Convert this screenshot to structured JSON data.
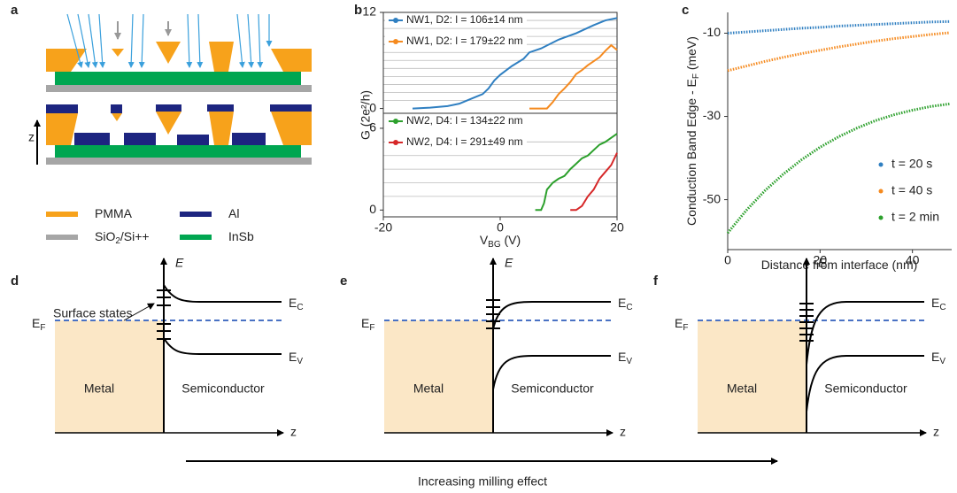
{
  "panel_a": {
    "label": "a",
    "z_label": "z",
    "legend": [
      {
        "label": {
          "main": "PMMA"
        },
        "color": "#f7a21b"
      },
      {
        "label": {
          "main": "Al"
        },
        "color": "#1d2580"
      },
      {
        "label": {
          "main": "SiO",
          "sub": "2",
          "rest": "/Si++"
        },
        "color": "#a6a6a6"
      },
      {
        "label": {
          "main": "InSb"
        },
        "color": "#00a651"
      }
    ]
  },
  "panel_b_label": "b",
  "panel_c_label": "c",
  "chart_data": [
    {
      "type": "line",
      "y_label": "G (2e²/h)",
      "xlim": [
        -20,
        20
      ],
      "ylim": [
        -0.6,
        12
      ],
      "yticks": [
        0,
        12
      ],
      "ygrid": [
        1,
        2,
        3,
        4,
        5,
        6,
        7,
        8,
        9,
        10,
        11
      ],
      "legend": "upper left",
      "series": [
        {
          "name": "NW1, D2: l = 106±14 nm",
          "color": "#2f7fc1",
          "x": [
            -15,
            -12,
            -9,
            -7,
            -5,
            -3,
            -2,
            -1,
            0,
            2,
            4,
            5,
            7,
            10,
            13,
            16,
            18,
            20
          ],
          "values": [
            0,
            0.1,
            0.3,
            0.6,
            1.2,
            1.8,
            2.5,
            3.5,
            4.2,
            5.3,
            6.2,
            7,
            7.5,
            8.6,
            9.4,
            10.4,
            11,
            11.3
          ]
        },
        {
          "name": "NW1, D2: l = 179±22 nm",
          "color": "#f58a1f",
          "x": [
            5,
            7,
            8,
            9,
            10,
            11,
            12,
            13,
            14,
            15,
            16,
            17,
            18,
            19,
            20
          ],
          "values": [
            0,
            0,
            0,
            0.8,
            1.8,
            2.5,
            3.3,
            4.3,
            4.8,
            5.4,
            5.9,
            6.4,
            7.2,
            7.9,
            7.3
          ]
        }
      ]
    },
    {
      "type": "line",
      "x_label": {
        "main": "V",
        "sub": "BG",
        "rest": " (V)"
      },
      "xlim": [
        -20,
        20
      ],
      "xticks": [
        -20,
        0,
        20
      ],
      "ylim": [
        -0.5,
        7.1
      ],
      "yticks": [
        0,
        6
      ],
      "ygrid": [
        1,
        2,
        3,
        4,
        5
      ],
      "legend": "upper left",
      "series": [
        {
          "name": "NW2, D4: l = 134±22 nm",
          "color": "#2ca02c",
          "x": [
            6,
            7,
            7.5,
            8,
            9,
            10,
            11,
            12,
            13,
            14,
            15,
            16,
            17,
            18,
            19,
            20
          ],
          "values": [
            0,
            0,
            0.5,
            1.5,
            2,
            2.3,
            2.5,
            3,
            3.4,
            3.8,
            4,
            4.4,
            4.8,
            5,
            5.3,
            5.6
          ]
        },
        {
          "name": "NW2, D4: l = 291±49 nm",
          "color": "#d62728",
          "x": [
            12,
            13,
            14,
            15,
            16,
            17,
            18,
            19,
            20
          ],
          "values": [
            0,
            0,
            0.3,
            1,
            1.5,
            2.3,
            2.8,
            3.3,
            4.2
          ]
        }
      ]
    },
    {
      "type": "line",
      "x_label": {
        "main": "Distance from interface (nm)"
      },
      "y_label": {
        "main": "Conduction Band Edge - E",
        "sub": "F",
        "rest": " (meV)"
      },
      "xlim": [
        0,
        48.5
      ],
      "xticks": [
        0,
        20,
        40
      ],
      "ylim": [
        -62,
        -5
      ],
      "yticks": [
        -10,
        -30,
        -50
      ],
      "legend": "lower right",
      "series": [
        {
          "name": "t = 20 s",
          "color": "#2f7fc1",
          "x": [
            0,
            4,
            8,
            12,
            16,
            20,
            24,
            28,
            32,
            36,
            40,
            44,
            48
          ],
          "values": [
            -10,
            -9.7,
            -9.4,
            -9.1,
            -8.8,
            -8.6,
            -8.3,
            -8.1,
            -7.9,
            -7.7,
            -7.5,
            -7.3,
            -7.2
          ]
        },
        {
          "name": "t = 40 s",
          "color": "#f58a1f",
          "x": [
            0,
            4,
            8,
            12,
            16,
            20,
            24,
            28,
            32,
            36,
            40,
            44,
            48
          ],
          "values": [
            -19,
            -17.9,
            -16.8,
            -15.8,
            -14.9,
            -14.1,
            -13.3,
            -12.6,
            -11.9,
            -11.3,
            -10.8,
            -10.3,
            -9.9
          ]
        },
        {
          "name": "t = 2 min",
          "color": "#2ca02c",
          "x": [
            0,
            4,
            8,
            12,
            16,
            20,
            24,
            28,
            32,
            36,
            40,
            44,
            48
          ],
          "values": [
            -58,
            -52.6,
            -47.9,
            -43.9,
            -40.4,
            -37.4,
            -34.9,
            -32.8,
            -31,
            -29.6,
            -28.5,
            -27.6,
            -27
          ]
        }
      ]
    }
  ],
  "diagrams": [
    {
      "label": "d",
      "energy": "E",
      "ec": {
        "main": "E",
        "sub": "C"
      },
      "ev": {
        "main": "E",
        "sub": "V"
      },
      "ef": {
        "main": "E",
        "sub": "F"
      },
      "metal": "Metal",
      "semiconductor": "Semiconductor",
      "z": "z",
      "annotation": "Surface states"
    },
    {
      "label": "e",
      "energy": "E",
      "ec": {
        "main": "E",
        "sub": "C"
      },
      "ev": {
        "main": "E",
        "sub": "V"
      },
      "ef": {
        "main": "E",
        "sub": "F"
      },
      "metal": "Metal",
      "semiconductor": "Semiconductor",
      "z": "z"
    },
    {
      "label": "f",
      "energy": "E",
      "ec": {
        "main": "E",
        "sub": "C"
      },
      "ev": {
        "main": "E",
        "sub": "V"
      },
      "ef": {
        "main": "E",
        "sub": "F"
      },
      "metal": "Metal",
      "semiconductor": "Semiconductor",
      "z": "z"
    }
  ],
  "bottom_caption": "Increasing milling effect"
}
